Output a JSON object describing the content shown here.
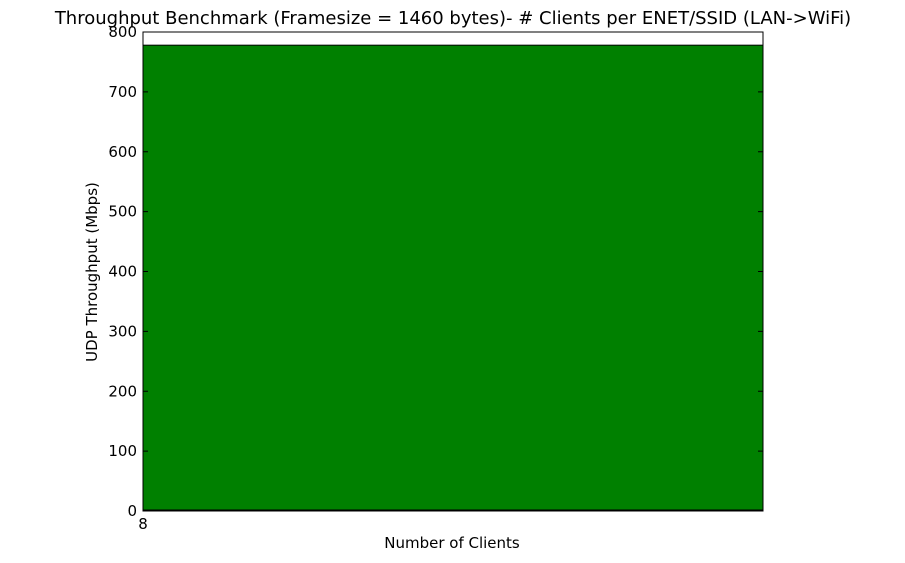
{
  "chart_data": {
    "type": "bar",
    "title": "Throughput Benchmark (Framesize = 1460 bytes)- # Clients per ENET/SSID (LAN->WiFi)",
    "xlabel": "Number of Clients",
    "ylabel": "UDP Throughput (Mbps)",
    "categories": [
      "8"
    ],
    "values": [
      778
    ],
    "ylim": [
      0,
      800
    ],
    "yticks": [
      0,
      100,
      200,
      300,
      400,
      500,
      600,
      700,
      800
    ],
    "xtick_labels": [
      "8"
    ],
    "bar_color": "#008000",
    "grid": false,
    "legend": "none"
  }
}
